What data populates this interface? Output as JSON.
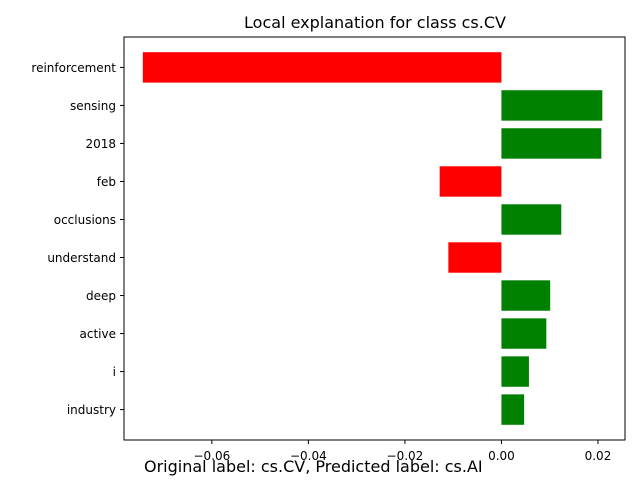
{
  "chart_data": {
    "type": "bar",
    "orientation": "horizontal",
    "title": "Local explanation for class cs.CV",
    "categories": [
      "reinforcement",
      "sensing",
      "2018",
      "feb",
      "occlusions",
      "understand",
      "deep",
      "active",
      "i",
      "industry"
    ],
    "values": [
      -0.0743,
      0.0209,
      0.0207,
      -0.0128,
      0.0124,
      -0.011,
      0.0101,
      0.0093,
      0.0057,
      0.0047
    ],
    "xlim": [
      -0.0782,
      0.0256
    ],
    "xticks": [
      -0.06,
      -0.04,
      -0.02,
      0.0,
      0.02
    ],
    "xtick_labels": [
      "−0.06",
      "−0.04",
      "−0.02",
      "0.00",
      "0.02"
    ],
    "xlabel": "",
    "ylabel": "",
    "grid": false,
    "colors": {
      "positive": "#008000",
      "negative": "#ff0000"
    }
  },
  "caption": "Original label: cs.CV, Predicted label: cs.AI"
}
